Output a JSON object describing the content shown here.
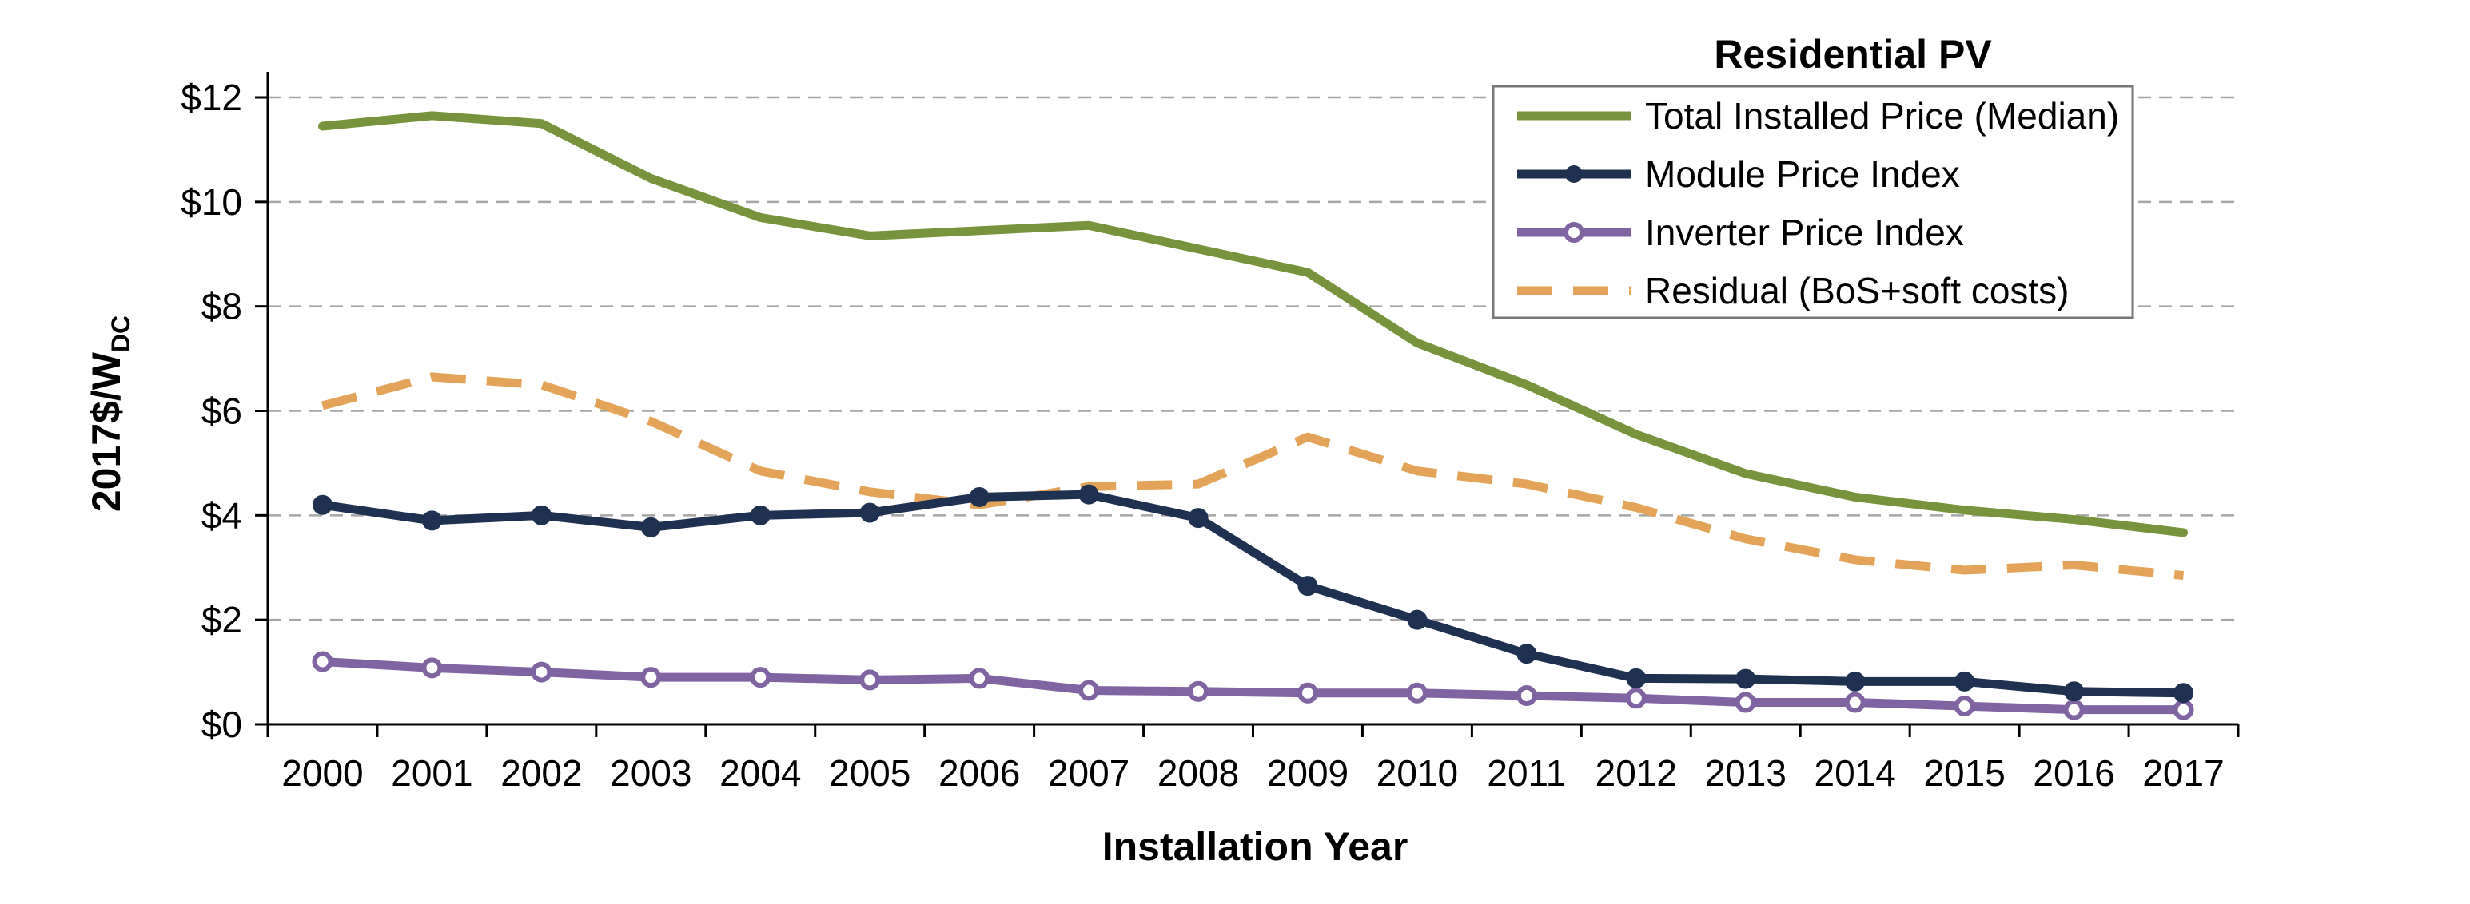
{
  "chart_data": {
    "type": "line",
    "title": "Residential PV",
    "xlabel": "Installation Year",
    "ylabel_main": "2017$/W",
    "ylabel_sub": "DC",
    "ylim": [
      0,
      12
    ],
    "yticks": [
      0,
      2,
      4,
      6,
      8,
      10,
      12
    ],
    "ytick_labels": [
      "$0",
      "$2",
      "$4",
      "$6",
      "$8",
      "$10",
      "$12"
    ],
    "grid": "horizontal dashed",
    "legend_position": "top-right",
    "x": [
      "2000",
      "2001",
      "2002",
      "2003",
      "2004",
      "2005",
      "2006",
      "2007",
      "2008",
      "2009",
      "2010",
      "2011",
      "2012",
      "2013",
      "2014",
      "2015",
      "2016",
      "2017"
    ],
    "series": [
      {
        "name": "Total Installed Price (Median)",
        "color": "#77933c",
        "style": "solid",
        "marker": "none",
        "values": [
          11.45,
          11.65,
          11.5,
          10.45,
          9.7,
          9.35,
          9.45,
          9.55,
          9.1,
          8.65,
          7.3,
          6.5,
          5.55,
          4.8,
          4.35,
          4.1,
          3.92,
          3.67
        ]
      },
      {
        "name": "Module Price Index",
        "color": "#1f3150",
        "style": "solid",
        "marker": "filled-circle",
        "values": [
          4.2,
          3.9,
          4.0,
          3.77,
          4.0,
          4.05,
          4.35,
          4.4,
          3.95,
          2.65,
          2.0,
          1.35,
          0.88,
          0.87,
          0.82,
          0.82,
          0.63,
          0.6
        ]
      },
      {
        "name": "Inverter Price Index",
        "color": "#8064a2",
        "style": "solid",
        "marker": "open-circle",
        "values": [
          1.2,
          1.08,
          1.0,
          0.9,
          0.9,
          0.85,
          0.88,
          0.65,
          0.63,
          0.6,
          0.6,
          0.55,
          0.5,
          0.42,
          0.42,
          0.35,
          0.28,
          0.28
        ]
      },
      {
        "name": "Residual (BoS+soft costs)",
        "color": "#e3a45a",
        "style": "dashed",
        "marker": "none",
        "values": [
          6.1,
          6.65,
          6.5,
          5.8,
          4.85,
          4.45,
          4.2,
          4.55,
          4.6,
          5.5,
          4.85,
          4.6,
          4.15,
          3.55,
          3.15,
          2.95,
          3.05,
          2.85
        ]
      }
    ]
  }
}
